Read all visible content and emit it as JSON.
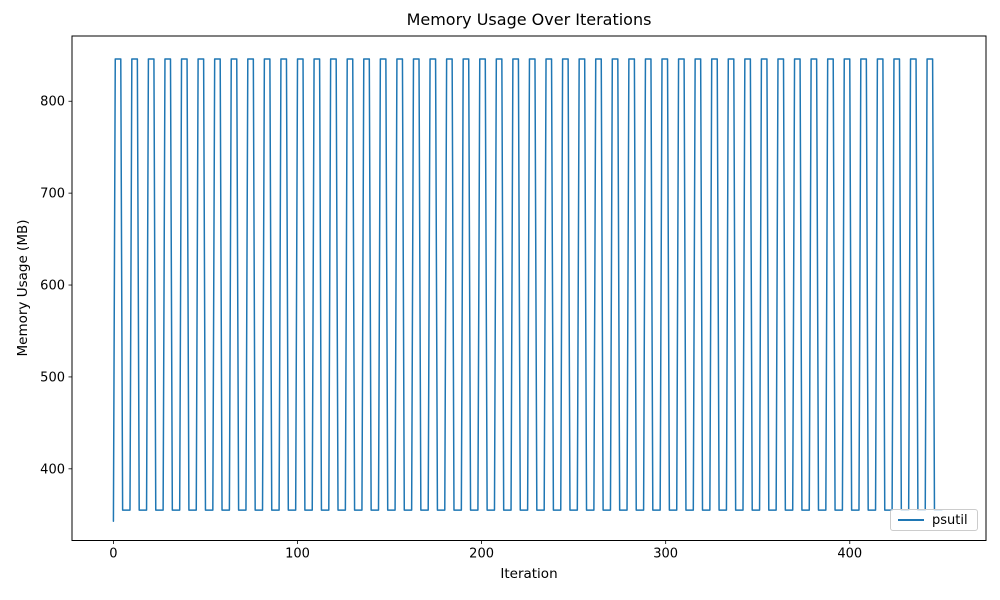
{
  "figure": {
    "background": "#ffffff"
  },
  "chart_data": {
    "type": "line",
    "title": "Memory Usage Over Iterations",
    "xlabel": "Iteration",
    "ylabel": "Memory Usage (MB)",
    "grid": false,
    "legend": {
      "position": "lower right",
      "entries": [
        "psutil"
      ]
    },
    "axes": {
      "xlim": [
        -22.5,
        474
      ],
      "ylim": [
        322,
        871
      ],
      "x_ticks": [
        0,
        100,
        200,
        300,
        400
      ],
      "y_ticks": [
        400,
        500,
        600,
        700,
        800
      ],
      "spine_color": "#000000",
      "tick_color": "#000000"
    },
    "series": [
      {
        "name": "psutil",
        "color": "#1f77b4",
        "line_width": 1.5,
        "pattern": {
          "kind": "square_wave",
          "description": "Memory oscillates between a low plateau and a high plateau every 9 iterations: high for iterations where (i mod 9) is 1..4, low otherwise; first sample starts slightly lower.",
          "x_start": 0,
          "x_end": 450,
          "x_step": 1,
          "low": 355,
          "high": 846,
          "period": 9,
          "high_phase_mod": [
            1,
            4
          ],
          "initial_value": 343
        }
      }
    ]
  }
}
